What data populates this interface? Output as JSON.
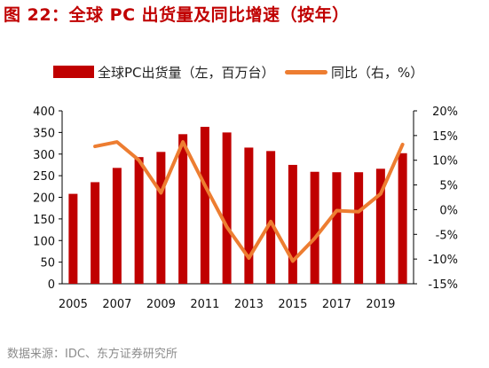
{
  "title": "图 22：全球 PC 出货量及同比增速（按年）",
  "source": "数据来源：IDC、东方证券研究所",
  "chart_data": {
    "type": "bar",
    "x": [
      2005,
      2006,
      2007,
      2008,
      2009,
      2010,
      2011,
      2012,
      2013,
      2014,
      2015,
      2016,
      2017,
      2018,
      2019,
      2020
    ],
    "series": [
      {
        "name": "全球PC出货量（左，百万台）",
        "type": "bar",
        "axis": "left",
        "color": "#c00000",
        "values": [
          208,
          235,
          268,
          293,
          305,
          346,
          363,
          350,
          315,
          307,
          275,
          259,
          258,
          258,
          266,
          302
        ]
      },
      {
        "name": "同比（右，%）",
        "type": "line",
        "axis": "right",
        "color": "#ed7d31",
        "values": [
          null,
          12.8,
          13.7,
          10.0,
          3.4,
          13.7,
          4.9,
          -3.5,
          -9.8,
          -2.4,
          -10.4,
          -5.8,
          -0.2,
          -0.4,
          3.2,
          13.2
        ]
      }
    ],
    "x_tick_labels": [
      "2005",
      "2007",
      "2009",
      "2011",
      "2013",
      "2015",
      "2017",
      "2019"
    ],
    "y_left": {
      "lim": [
        0,
        400
      ],
      "ticks": [
        "0",
        "50",
        "100",
        "150",
        "200",
        "250",
        "300",
        "350",
        "400"
      ]
    },
    "y_right": {
      "lim": [
        -15,
        20
      ],
      "ticks": [
        "-15%",
        "-10%",
        "-5%",
        "0%",
        "5%",
        "10%",
        "15%",
        "20%"
      ]
    },
    "grid": false,
    "legend_position": "top"
  }
}
